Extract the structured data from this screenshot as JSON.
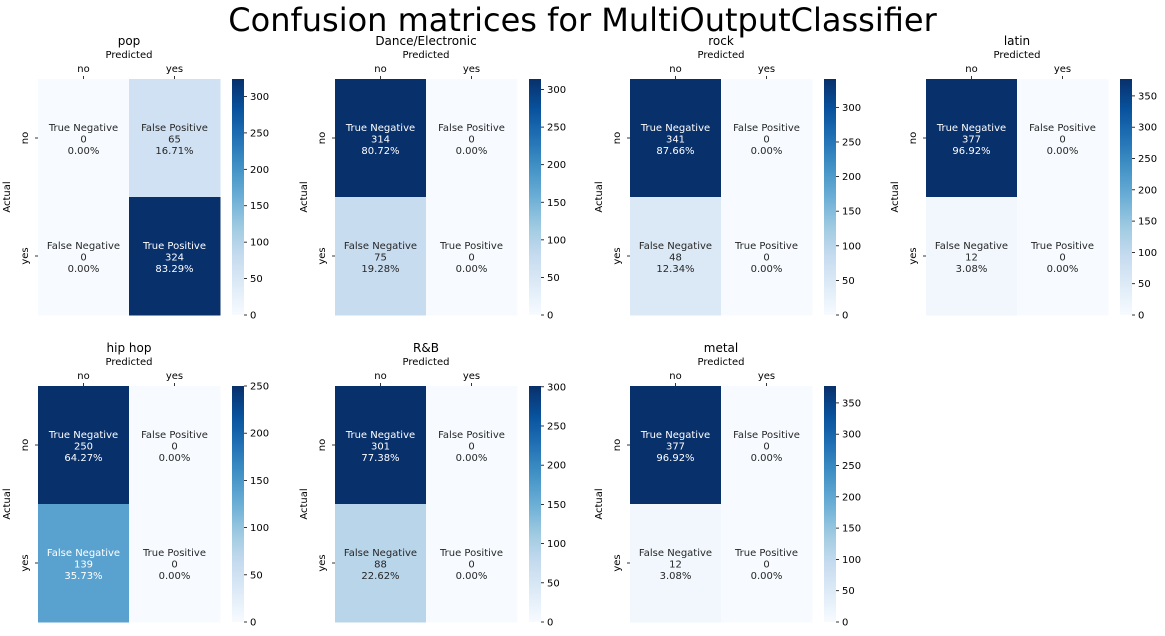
{
  "title": "Confusion matrices for MultiOutputClassifier",
  "colors": {
    "cmap_low": "#f7fbff",
    "cmap_high": "#08306b",
    "text_dark": "#262626",
    "text_light": "#ffffff"
  },
  "chart_data": [
    {
      "type": "heatmap",
      "title": "pop",
      "xlabel": "Predicted",
      "ylabel": "Actual",
      "x_categories": [
        "no",
        "yes"
      ],
      "y_categories": [
        "no",
        "yes"
      ],
      "cells": [
        [
          {
            "label": "True Negative",
            "count": 0,
            "percent": "0.00%"
          },
          {
            "label": "False Positive",
            "count": 65,
            "percent": "16.71%"
          }
        ],
        [
          {
            "label": "False Negative",
            "count": 0,
            "percent": "0.00%"
          },
          {
            "label": "True Positive",
            "count": 324,
            "percent": "83.29%"
          }
        ]
      ],
      "colorbar": {
        "vmin": 0,
        "vmax": 324,
        "ticks": [
          0,
          50,
          100,
          150,
          200,
          250,
          300
        ]
      }
    },
    {
      "type": "heatmap",
      "title": "Dance/Electronic",
      "xlabel": "Predicted",
      "ylabel": "Actual",
      "x_categories": [
        "no",
        "yes"
      ],
      "y_categories": [
        "no",
        "yes"
      ],
      "cells": [
        [
          {
            "label": "True Negative",
            "count": 314,
            "percent": "80.72%"
          },
          {
            "label": "False Positive",
            "count": 0,
            "percent": "0.00%"
          }
        ],
        [
          {
            "label": "False Negative",
            "count": 75,
            "percent": "19.28%"
          },
          {
            "label": "True Positive",
            "count": 0,
            "percent": "0.00%"
          }
        ]
      ],
      "colorbar": {
        "vmin": 0,
        "vmax": 314,
        "ticks": [
          0,
          50,
          100,
          150,
          200,
          250,
          300
        ]
      }
    },
    {
      "type": "heatmap",
      "title": "rock",
      "xlabel": "Predicted",
      "ylabel": "Actual",
      "x_categories": [
        "no",
        "yes"
      ],
      "y_categories": [
        "no",
        "yes"
      ],
      "cells": [
        [
          {
            "label": "True Negative",
            "count": 341,
            "percent": "87.66%"
          },
          {
            "label": "False Positive",
            "count": 0,
            "percent": "0.00%"
          }
        ],
        [
          {
            "label": "False Negative",
            "count": 48,
            "percent": "12.34%"
          },
          {
            "label": "True Positive",
            "count": 0,
            "percent": "0.00%"
          }
        ]
      ],
      "colorbar": {
        "vmin": 0,
        "vmax": 341,
        "ticks": [
          0,
          50,
          100,
          150,
          200,
          250,
          300
        ]
      }
    },
    {
      "type": "heatmap",
      "title": "latin",
      "xlabel": "Predicted",
      "ylabel": "Actual",
      "x_categories": [
        "no",
        "yes"
      ],
      "y_categories": [
        "no",
        "yes"
      ],
      "cells": [
        [
          {
            "label": "True Negative",
            "count": 377,
            "percent": "96.92%"
          },
          {
            "label": "False Positive",
            "count": 0,
            "percent": "0.00%"
          }
        ],
        [
          {
            "label": "False Negative",
            "count": 12,
            "percent": "3.08%"
          },
          {
            "label": "True Positive",
            "count": 0,
            "percent": "0.00%"
          }
        ]
      ],
      "colorbar": {
        "vmin": 0,
        "vmax": 377,
        "ticks": [
          0,
          50,
          100,
          150,
          200,
          250,
          300,
          350
        ]
      }
    },
    {
      "type": "heatmap",
      "title": "hip hop",
      "xlabel": "Predicted",
      "ylabel": "Actual",
      "x_categories": [
        "no",
        "yes"
      ],
      "y_categories": [
        "no",
        "yes"
      ],
      "cells": [
        [
          {
            "label": "True Negative",
            "count": 250,
            "percent": "64.27%"
          },
          {
            "label": "False Positive",
            "count": 0,
            "percent": "0.00%"
          }
        ],
        [
          {
            "label": "False Negative",
            "count": 139,
            "percent": "35.73%"
          },
          {
            "label": "True Positive",
            "count": 0,
            "percent": "0.00%"
          }
        ]
      ],
      "colorbar": {
        "vmin": 0,
        "vmax": 250,
        "ticks": [
          0,
          50,
          100,
          150,
          200,
          250
        ]
      }
    },
    {
      "type": "heatmap",
      "title": "R&B",
      "xlabel": "Predicted",
      "ylabel": "Actual",
      "x_categories": [
        "no",
        "yes"
      ],
      "y_categories": [
        "no",
        "yes"
      ],
      "cells": [
        [
          {
            "label": "True Negative",
            "count": 301,
            "percent": "77.38%"
          },
          {
            "label": "False Positive",
            "count": 0,
            "percent": "0.00%"
          }
        ],
        [
          {
            "label": "False Negative",
            "count": 88,
            "percent": "22.62%"
          },
          {
            "label": "True Positive",
            "count": 0,
            "percent": "0.00%"
          }
        ]
      ],
      "colorbar": {
        "vmin": 0,
        "vmax": 301,
        "ticks": [
          0,
          50,
          100,
          150,
          200,
          250,
          300
        ]
      }
    },
    {
      "type": "heatmap",
      "title": "metal",
      "xlabel": "Predicted",
      "ylabel": "Actual",
      "x_categories": [
        "no",
        "yes"
      ],
      "y_categories": [
        "no",
        "yes"
      ],
      "cells": [
        [
          {
            "label": "True Negative",
            "count": 377,
            "percent": "96.92%"
          },
          {
            "label": "False Positive",
            "count": 0,
            "percent": "0.00%"
          }
        ],
        [
          {
            "label": "False Negative",
            "count": 12,
            "percent": "3.08%"
          },
          {
            "label": "True Positive",
            "count": 0,
            "percent": "0.00%"
          }
        ]
      ],
      "colorbar": {
        "vmin": 0,
        "vmax": 377,
        "ticks": [
          0,
          50,
          100,
          150,
          200,
          250,
          300,
          350
        ]
      }
    }
  ]
}
